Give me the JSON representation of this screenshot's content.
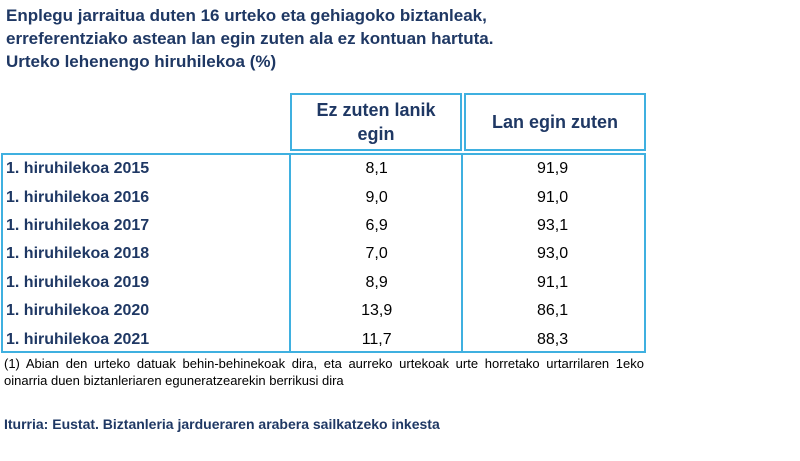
{
  "header": {
    "title_lines": [
      "Enplegu jarraitua duten 16 urteko eta gehiagoko biztanleak,",
      "erreferentziako astean lan egin zuten ala ez kontuan hartuta.",
      "Urteko lehenengo hiruhilekoa (%)"
    ]
  },
  "table": {
    "columns": [
      "Ez zuten lanik egin",
      "Lan egin zuten"
    ],
    "rows": [
      [
        "1. hiruhilekoa 2015",
        "8,1",
        "91,9"
      ],
      [
        "1. hiruhilekoa 2016",
        "9,0",
        "91,0"
      ],
      [
        "1. hiruhilekoa 2017",
        "6,9",
        "93,1"
      ],
      [
        "1. hiruhilekoa 2018",
        "7,0",
        "93,0"
      ],
      [
        "1. hiruhilekoa 2019",
        "8,9",
        "91,1"
      ],
      [
        "1. hiruhilekoa 2020",
        "13,9",
        "86,1"
      ],
      [
        "1. hiruhilekoa 2021",
        "11,7",
        "88,3"
      ]
    ]
  },
  "footnote": "(1) Abian den urteko datuak behin-behinekoak dira, eta aurreko urtekoak urte horretako urtarrilaren 1eko oinarria duen biztanleriaren eguneratzearekin berrikusi dira",
  "source": "Iturria: Eustat. Biztanleria jardueraren arabera sailkatzeko inkesta"
}
